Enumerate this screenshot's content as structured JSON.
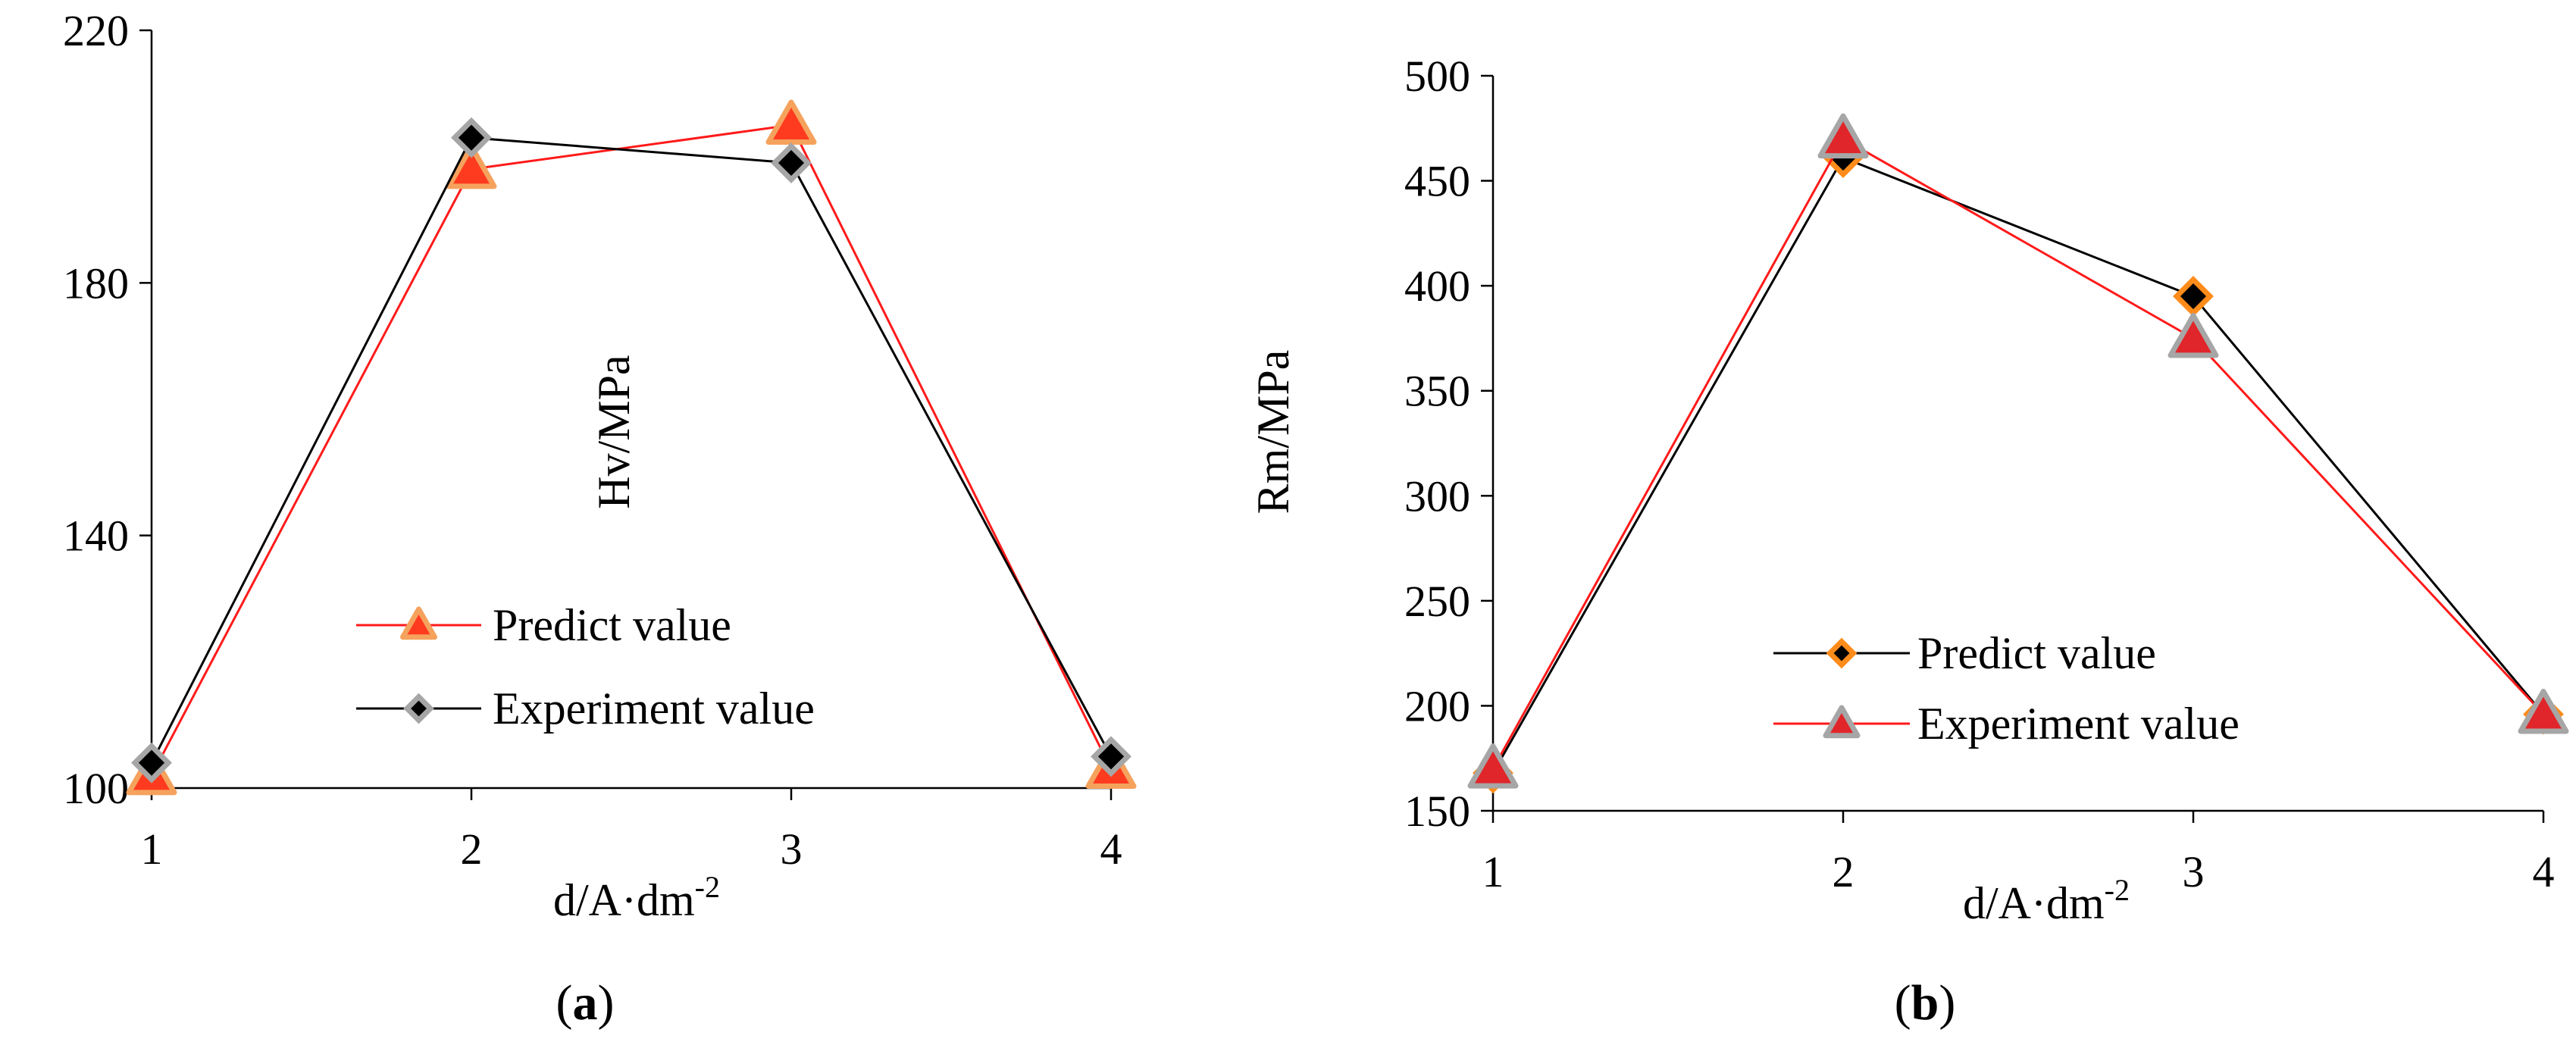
{
  "chart_data": [
    {
      "type": "line",
      "caption_letter": "a",
      "x": [
        1,
        2,
        3,
        4
      ],
      "xticks": [
        "1",
        "2",
        "3",
        "4"
      ],
      "xlabel_base": "d/A·dm",
      "xlabel_sup": "-2",
      "ylabel": "Hv/MPa",
      "ylim": [
        100,
        220
      ],
      "yticks": [
        100,
        140,
        180,
        220
      ],
      "grid": false,
      "legend_position": "bottom-center",
      "series": [
        {
          "name": "Predict value",
          "values": [
            102,
            198,
            205,
            103
          ],
          "color": "#ff1a1a",
          "marker": "triangle",
          "marker_fill": "#ff3b1f",
          "marker_stroke": "#f5a25d"
        },
        {
          "name": "Experiment value",
          "values": [
            104,
            203,
            199,
            105
          ],
          "color": "#000000",
          "marker": "diamond",
          "marker_fill": "#000000",
          "marker_stroke": "#a6a6a6"
        }
      ]
    },
    {
      "type": "line",
      "caption_letter": "b",
      "x": [
        1,
        2,
        3,
        4
      ],
      "xticks": [
        "1",
        "2",
        "3",
        "4"
      ],
      "xlabel_base": "d/A·dm",
      "xlabel_sup": "-2",
      "ylabel": "Rm/MPa",
      "ylim": [
        150,
        500
      ],
      "yticks": [
        150,
        200,
        250,
        300,
        350,
        400,
        450,
        500
      ],
      "grid": false,
      "legend_position": "bottom-center",
      "series": [
        {
          "name": "Predict value",
          "values": [
            168,
            461,
            395,
            196
          ],
          "color": "#000000",
          "marker": "diamond",
          "marker_fill": "#000000",
          "marker_stroke": "#ff8c1a"
        },
        {
          "name": "Experiment value",
          "values": [
            170,
            470,
            375,
            196
          ],
          "color": "#ff1a1a",
          "marker": "triangle",
          "marker_fill": "#e0262a",
          "marker_stroke": "#a6a6a6"
        }
      ]
    }
  ]
}
